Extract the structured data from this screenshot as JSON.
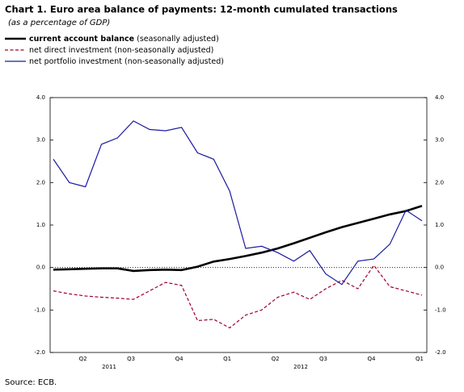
{
  "chart_data": {
    "type": "line",
    "title": "Chart 1. Euro area balance of payments: 12-month cumulated transactions",
    "subtitle": "(as a percentage of GDP)",
    "source": "Source: ECB.",
    "categories": [
      null,
      null,
      "Q2",
      null,
      null,
      "Q3",
      null,
      null,
      "Q4",
      null,
      null,
      "Q1",
      null,
      null,
      "Q2",
      null,
      null,
      "Q3",
      null,
      null,
      "Q4",
      null,
      null,
      "Q1"
    ],
    "year_labels": [
      "2011",
      "2012"
    ],
    "ylim": [
      -2,
      4
    ],
    "yticks": [
      {
        "value": -2,
        "label": "-2.0"
      },
      {
        "value": -1,
        "label": "-1.0"
      },
      {
        "value": 0,
        "label": "0.0"
      },
      {
        "value": 1,
        "label": "1.0"
      },
      {
        "value": 2,
        "label": "2.0"
      },
      {
        "value": 3,
        "label": "3.0"
      },
      {
        "value": 4,
        "label": "4.0"
      }
    ],
    "y2lim": [
      -2,
      4
    ],
    "y2ticks": [
      {
        "value": -2,
        "label": "-2.0"
      },
      {
        "value": -1,
        "label": "-1.0"
      },
      {
        "value": 0,
        "label": "0.0"
      },
      {
        "value": 1,
        "label": "1.0"
      },
      {
        "value": 2,
        "label": "2.0"
      },
      {
        "value": 3,
        "label": "3.0"
      },
      {
        "value": 4,
        "label": "4.0"
      }
    ],
    "series": [
      {
        "name": "current account balance",
        "note": "(seasonally adjusted)",
        "color": "#000000",
        "style": "solid-thick",
        "values": [
          -0.05,
          -0.04,
          -0.03,
          -0.02,
          -0.02,
          -0.08,
          -0.06,
          -0.05,
          -0.06,
          0.02,
          0.14,
          0.2,
          0.27,
          0.35,
          0.45,
          0.57,
          0.7,
          0.83,
          0.95,
          1.05,
          1.15,
          1.25,
          1.33,
          1.45
        ]
      },
      {
        "name": "net direct investment",
        "note": "(non-seasonally adjusted)",
        "color": "#a0002a",
        "style": "dashed",
        "values": [
          -0.55,
          -0.62,
          -0.67,
          -0.7,
          -0.72,
          -0.75,
          -0.55,
          -0.35,
          -0.42,
          -1.25,
          -1.22,
          -1.42,
          -1.12,
          -1.0,
          -0.7,
          -0.58,
          -0.75,
          -0.5,
          -0.3,
          -0.5,
          0.05,
          -0.45,
          -0.55,
          -0.65
        ]
      },
      {
        "name": "net portfolio investment",
        "note": "(non-seasonally adjusted)",
        "color": "#1a1aa0",
        "style": "solid",
        "values": [
          2.55,
          2.0,
          1.9,
          2.9,
          3.05,
          3.45,
          3.25,
          3.22,
          3.3,
          2.7,
          2.55,
          1.8,
          0.45,
          0.5,
          0.35,
          0.15,
          0.4,
          -0.15,
          -0.4,
          0.15,
          0.2,
          0.55,
          1.35,
          1.1
        ]
      }
    ]
  }
}
